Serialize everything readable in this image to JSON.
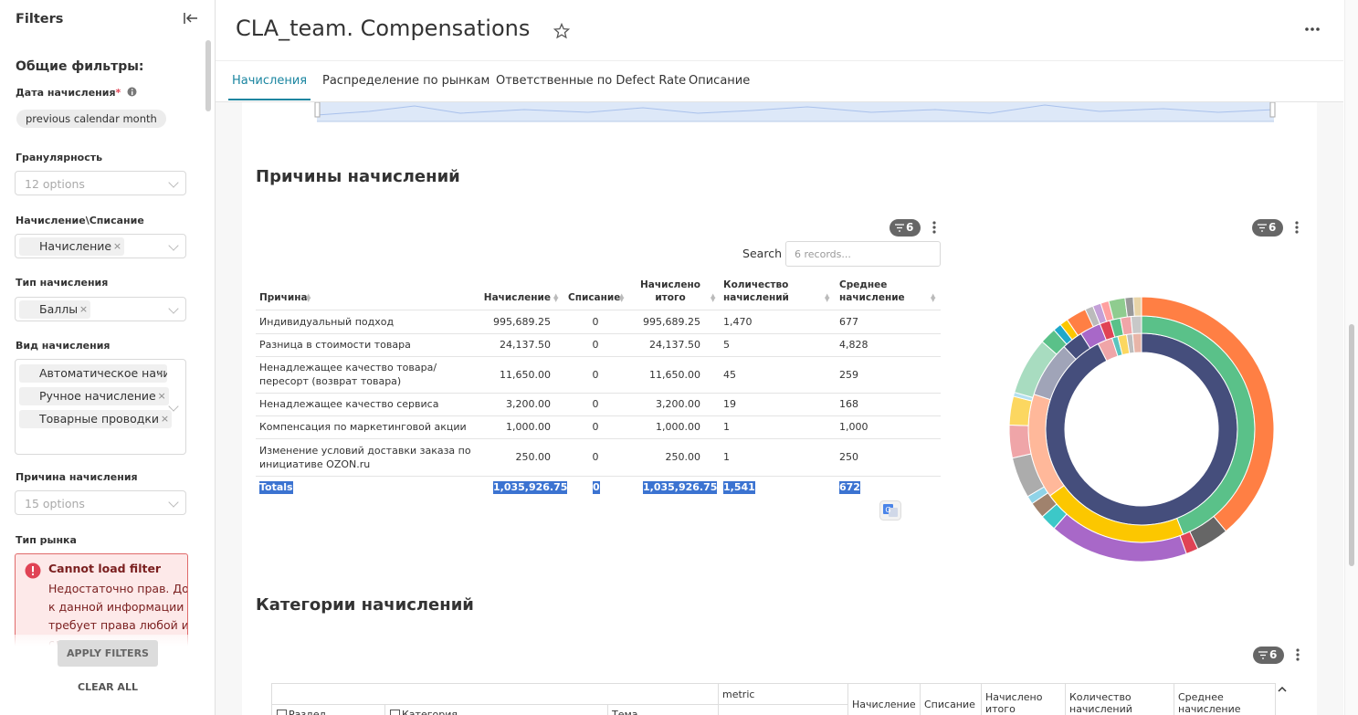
{
  "sidebar": {
    "title": "Filters",
    "section": "Общие фильтры:",
    "date": {
      "label": "Дата начисления",
      "required": "*",
      "value": "previous calendar month"
    },
    "granularity": {
      "label": "Гранулярность",
      "placeholder": "12 options"
    },
    "accrual_writeoff": {
      "label": "Начисление\\Списание",
      "tags": [
        "Начисление"
      ]
    },
    "accrual_type": {
      "label": "Тип начисления",
      "tags": [
        "Баллы"
      ]
    },
    "accrual_kind": {
      "label": "Вид начисления",
      "tags": [
        "Автоматическое начисление",
        "Ручное начисление",
        "Товарные проводки"
      ]
    },
    "reason": {
      "label": "Причина начисления",
      "placeholder": "15 options"
    },
    "market": {
      "label": "Тип рынка",
      "error_title": "Cannot load filter",
      "error_text": "Недостаточно прав. Доступ к данной информации требует права любой из следующих"
    },
    "apply": "APPLY FILTERS",
    "clear": "CLEAR ALL"
  },
  "header": {
    "title": "CLA_team. Compensations",
    "tabs": [
      "Начисления",
      "Распределение по рынкам",
      "Ответственные по Defect Rate",
      "Описание"
    ],
    "active_tab": 0
  },
  "section1": {
    "title": "Причины начислений",
    "badge": 6,
    "search_label": "Search",
    "search_placeholder": "6 records...",
    "table": {
      "columns": [
        "Причина",
        "Начисление",
        "Списание",
        "Начислено итого",
        "Количество начислений",
        "Среднее начисление"
      ],
      "rows": [
        [
          "Индивидуальный подход",
          "995,689.25",
          "0",
          "995,689.25",
          "1,470",
          "677"
        ],
        [
          "Разница в стоимости товара",
          "24,137.50",
          "0",
          "24,137.50",
          "5",
          "4,828"
        ],
        [
          "Ненадлежащее качество товара/пересорт (возврат товара)",
          "11,650.00",
          "0",
          "11,650.00",
          "45",
          "259"
        ],
        [
          "Ненадлежащее качество сервиса",
          "3,200.00",
          "0",
          "3,200.00",
          "19",
          "168"
        ],
        [
          "Компенсация по маркетинговой акции",
          "1,000.00",
          "0",
          "1,000.00",
          "1",
          "1,000"
        ],
        [
          "Изменение условий доставки заказа по инициативе OZON.ru",
          "250.00",
          "0",
          "250.00",
          "1",
          "250"
        ]
      ],
      "totals": [
        "Totals",
        "1,035,926.75",
        "0",
        "1,035,926.75",
        "1,541",
        "672"
      ]
    }
  },
  "sunburst": {
    "badge": 6,
    "rings": [
      {
        "values": [
          92.5,
          2.5,
          1,
          1.5,
          1,
          1.5
        ],
        "colors": [
          "#454e7c",
          "#efa5a8",
          "#5ac4be",
          "#fcd760",
          "#bdbdbd",
          "#e8b5a8"
        ]
      },
      {
        "values": [
          44,
          21,
          15,
          8,
          3,
          3,
          1.5,
          1.5,
          1.5,
          1.5
        ],
        "colors": [
          "#5ac189",
          "#fcc700",
          "#ffb89a",
          "#a0a4b8",
          "#454e7c",
          "#a868c8",
          "#e04355",
          "#5ac189",
          "#efa5a8",
          "#c8c8c8"
        ]
      },
      {
        "values": [
          39,
          4,
          1.5,
          17,
          2,
          2,
          1,
          5,
          4,
          3.5,
          0.5,
          7,
          2,
          1,
          1,
          2.5,
          1,
          1,
          1,
          2,
          1,
          1
        ],
        "colors": [
          "#ff7f44",
          "#666666",
          "#e04355",
          "#a868c8",
          "#3cc8c8",
          "#a0826d",
          "#8fd3e8",
          "#acacac",
          "#efa5a8",
          "#fcd760",
          "#b4e0f0",
          "#a8dcc0",
          "#5ac189",
          "#1fa8c9",
          "#fcc700",
          "#ff7f44",
          "#bbbbbb",
          "#c4a0d8",
          "#ffa0a0",
          "#8fcc8f",
          "#999999",
          "#e8d4a8"
        ]
      }
    ]
  },
  "section2": {
    "title": "Категории начислений",
    "badge": 6,
    "metric": "metric",
    "dims": [
      "Раздел",
      "Категория",
      "Тема"
    ],
    "columns": [
      "Начисление",
      "Списание",
      "Начислено итого",
      "Количество начислений",
      "Среднее начисление"
    ]
  }
}
